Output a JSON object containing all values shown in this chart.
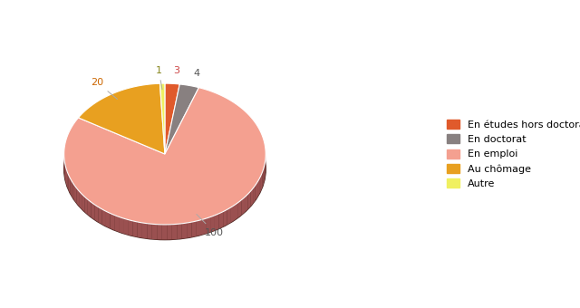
{
  "labels": [
    "En études hors doctorat",
    "En doctorat",
    "En emploi",
    "Au chômage",
    "Autre"
  ],
  "values": [
    3,
    4,
    100,
    20,
    1
  ],
  "colors": [
    "#e05a2b",
    "#888080",
    "#f4a090",
    "#e8a020",
    "#f0f060"
  ],
  "shadow_colors": [
    "#7a2a1a",
    "#4a4040",
    "#9a5050",
    "#8a5000",
    "#909000"
  ],
  "startangle": 90,
  "figsize": [
    6.4,
    3.4
  ],
  "dpi": 100
}
